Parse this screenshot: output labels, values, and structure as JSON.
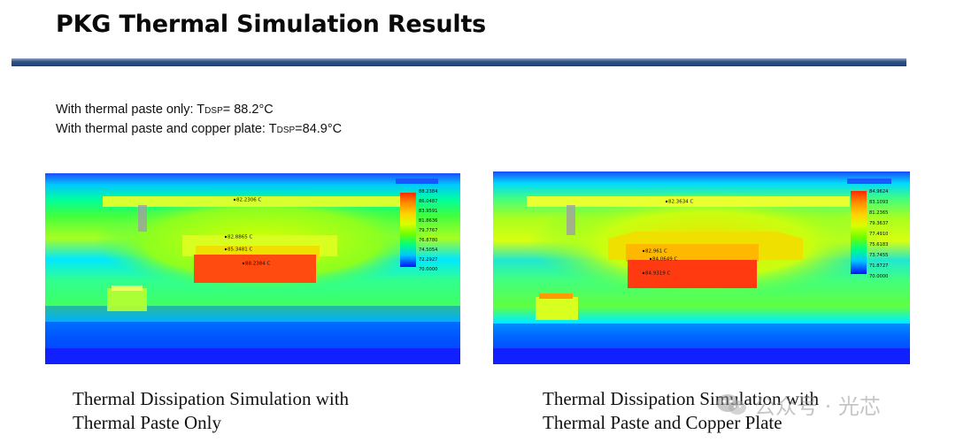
{
  "slide": {
    "title": "PKG Thermal Simulation Results",
    "result_line_1": {
      "prefix": "With thermal paste only: T",
      "subscript": "DSP",
      "value": "= 88.2°C"
    },
    "result_line_2": {
      "prefix": "With thermal paste and copper plate: T",
      "subscript": "DSP",
      "value": "=84.9°C"
    }
  },
  "simulations": [
    {
      "caption_line_1": "Thermal Dissipation Simulation with",
      "caption_line_2": "Thermal Paste Only",
      "probes": [
        "82.2306 C",
        "82.8865 C",
        "85.3481 C",
        "88.2384 C"
      ],
      "legend_values": [
        "88.2384",
        "86.0487",
        "83.9591",
        "81.8636",
        "79.7767",
        "76.8780",
        "74.5054",
        "72.2927",
        "70.0000"
      ]
    },
    {
      "caption_line_1": "Thermal Dissipation Simulation with",
      "caption_line_2": "Thermal Paste and Copper Plate",
      "probes": [
        "82.3634 C",
        "82.961 C",
        "84.0649 C",
        "84.9319 C"
      ],
      "legend_values": [
        "84.9624",
        "83.1093",
        "81.2365",
        "79.3637",
        "77.4910",
        "75.6183",
        "73.7455",
        "71.8727",
        "70.0000"
      ]
    }
  ],
  "watermark": {
    "text": "公众号 · 光芯",
    "icon": "wechat-icon"
  },
  "colors": {
    "title_bar": "#2f5488",
    "thermal_scale": [
      "#ff2a00",
      "#ff8c00",
      "#ffd200",
      "#d8ff00",
      "#6dff00",
      "#00ff80",
      "#00e6ff",
      "#0080ff",
      "#0000ff"
    ]
  }
}
